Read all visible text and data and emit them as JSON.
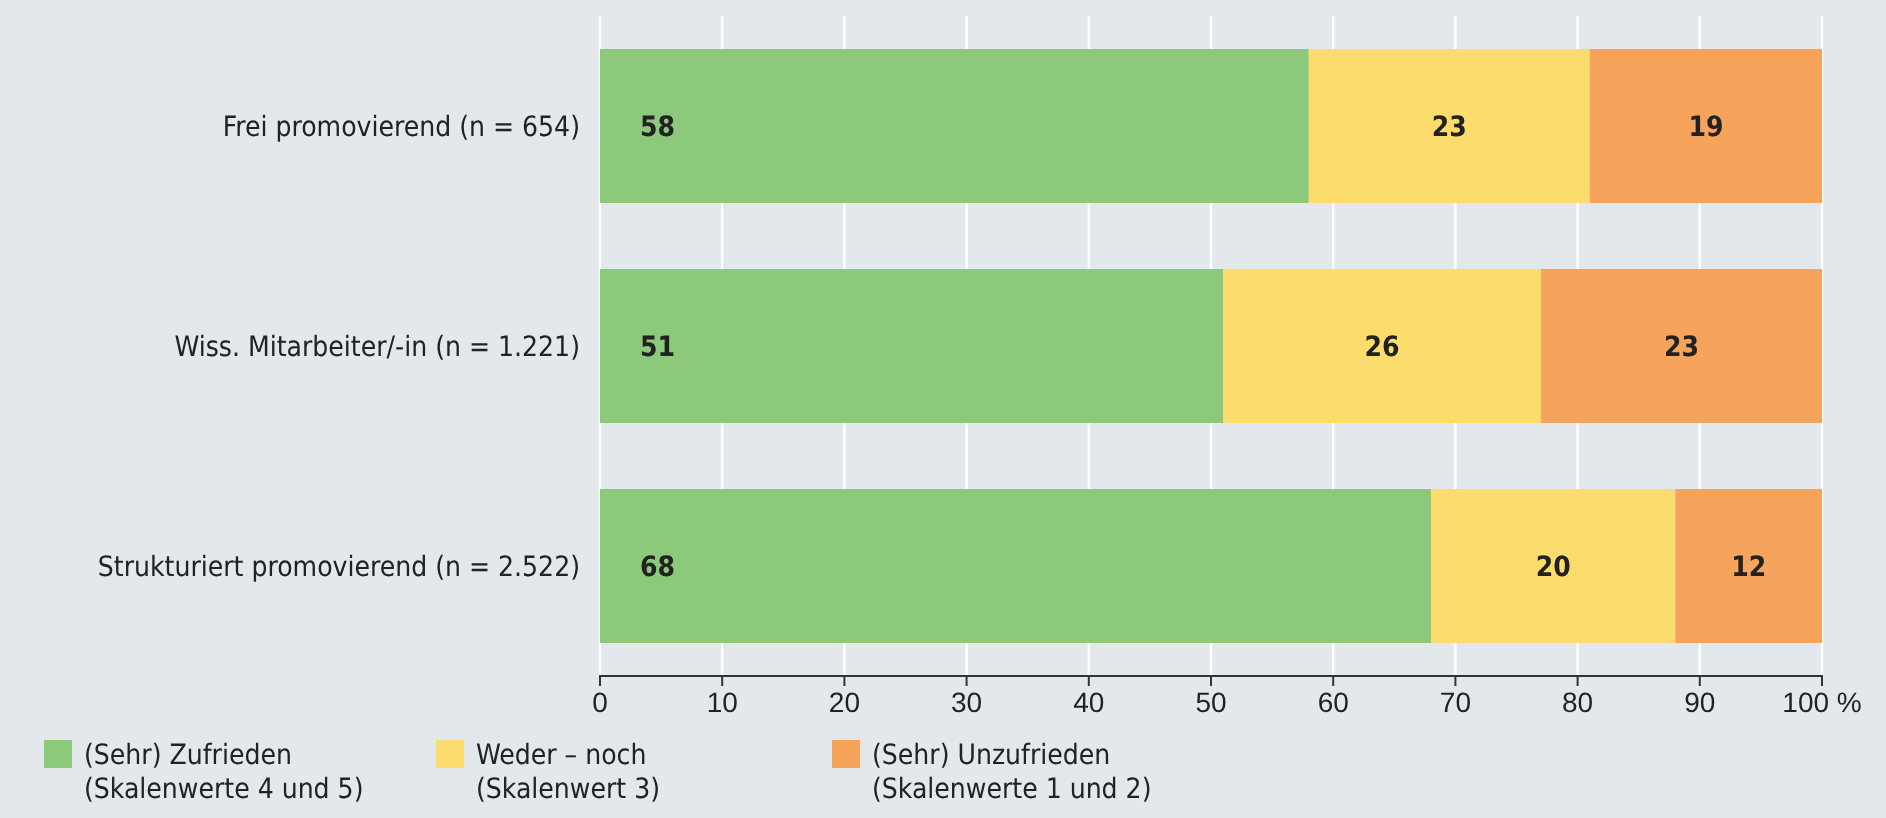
{
  "chart_data": {
    "type": "bar",
    "orientation": "horizontal",
    "stacked": true,
    "categories": [
      "Frei promovierend (n = 654)",
      "Wiss. Mitarbeiter/-in (n = 1.221)",
      "Strukturiert promovierend  (n = 2.522)"
    ],
    "series": [
      {
        "name": "(Sehr) Zufrieden\n(Skalenwerte 4 und 5)",
        "color": "#8cc97a",
        "values": [
          58,
          51,
          68
        ]
      },
      {
        "name": "Weder – noch\n(Skalenwert 3)",
        "color": "#fddc6e",
        "values": [
          23,
          26,
          20
        ]
      },
      {
        "name": "(Sehr) Unzufrieden\n(Skalenwerte 1 und 2)",
        "color": "#f6a35c",
        "values": [
          19,
          23,
          12
        ]
      }
    ],
    "xlim": [
      0,
      100
    ],
    "xticks": [
      0,
      10,
      20,
      30,
      40,
      50,
      60,
      70,
      80,
      90,
      {
        "value": 100,
        "label": "100 %"
      }
    ],
    "grid": "x",
    "legend": "bottom",
    "data_labels": true
  }
}
